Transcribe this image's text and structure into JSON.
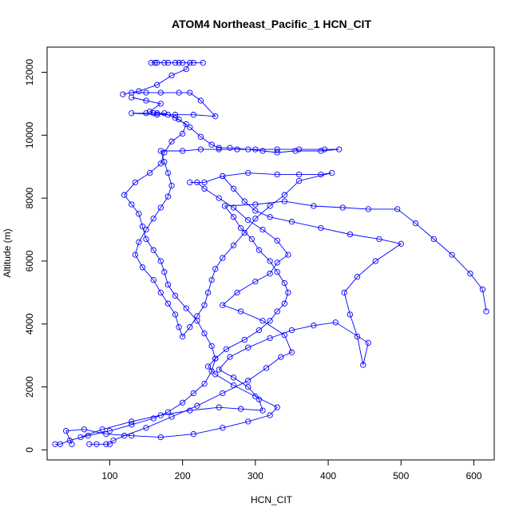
{
  "chart_data": {
    "type": "line",
    "title": "ATOM4 Northeast_Pacific_1 HCN_CIT",
    "xlabel": "HCN_CIT",
    "ylabel": "Altitude (m)",
    "xlim": [
      14,
      628
    ],
    "ylim": [
      -320,
      12800
    ],
    "xticks": [
      100,
      200,
      300,
      400,
      500,
      600
    ],
    "yticks": [
      0,
      2000,
      4000,
      6000,
      8000,
      10000,
      12000
    ],
    "grid": false,
    "series_color": "#0000ff",
    "series": [
      {
        "values": [
          [
            72,
            180
          ],
          [
            82,
            180
          ],
          [
            95,
            180
          ],
          [
            100,
            180
          ],
          [
            105,
            300
          ],
          [
            120,
            450
          ],
          [
            150,
            700
          ],
          [
            185,
            1050
          ],
          [
            220,
            1400
          ],
          [
            255,
            1800
          ],
          [
            290,
            2200
          ],
          [
            315,
            2600
          ],
          [
            335,
            2950
          ],
          [
            350,
            3100
          ],
          [
            340,
            3650
          ],
          [
            310,
            4100
          ],
          [
            280,
            4400
          ],
          [
            255,
            4600
          ],
          [
            275,
            5000
          ],
          [
            300,
            5350
          ],
          [
            320,
            5600
          ],
          [
            330,
            5950
          ],
          [
            345,
            6200
          ],
          [
            330,
            6650
          ],
          [
            310,
            7000
          ],
          [
            290,
            7300
          ],
          [
            270,
            7700
          ],
          [
            250,
            8000
          ],
          [
            230,
            8300
          ],
          [
            220,
            8500
          ],
          [
            210,
            8500
          ],
          [
            230,
            8500
          ],
          [
            255,
            8700
          ],
          [
            290,
            8800
          ],
          [
            330,
            8750
          ],
          [
            360,
            8750
          ],
          [
            390,
            8750
          ],
          [
            405,
            8800
          ],
          [
            360,
            8550
          ],
          [
            340,
            8100
          ],
          [
            320,
            7750
          ],
          [
            300,
            7350
          ],
          [
            285,
            6900
          ],
          [
            270,
            6500
          ],
          [
            255,
            6100
          ],
          [
            245,
            5750
          ],
          [
            240,
            5400
          ],
          [
            235,
            5000
          ],
          [
            230,
            4600
          ],
          [
            220,
            4250
          ],
          [
            210,
            3900
          ],
          [
            200,
            3600
          ],
          [
            195,
            3900
          ],
          [
            190,
            4300
          ],
          [
            180,
            4650
          ],
          [
            170,
            5000
          ],
          [
            160,
            5400
          ],
          [
            145,
            5800
          ],
          [
            135,
            6200
          ],
          [
            140,
            6600
          ],
          [
            150,
            7000
          ],
          [
            160,
            7350
          ],
          [
            170,
            7700
          ],
          [
            180,
            8050
          ],
          [
            185,
            8400
          ],
          [
            180,
            8800
          ],
          [
            175,
            9150
          ],
          [
            170,
            9500
          ],
          [
            200,
            9500
          ],
          [
            225,
            9550
          ],
          [
            250,
            9550
          ],
          [
            275,
            9550
          ],
          [
            300,
            9550
          ],
          [
            330,
            9550
          ],
          [
            360,
            9550
          ],
          [
            395,
            9550
          ],
          [
            415,
            9550
          ],
          [
            390,
            9500
          ],
          [
            355,
            9500
          ],
          [
            330,
            9450
          ],
          [
            310,
            9500
          ],
          [
            290,
            9550
          ],
          [
            265,
            9600
          ],
          [
            250,
            9600
          ],
          [
            240,
            9700
          ],
          [
            225,
            9950
          ],
          [
            210,
            10250
          ],
          [
            195,
            10500
          ],
          [
            180,
            10650
          ],
          [
            165,
            10700
          ],
          [
            150,
            10700
          ],
          [
            130,
            10700
          ],
          [
            165,
            10650
          ],
          [
            190,
            10650
          ],
          [
            215,
            10650
          ],
          [
            245,
            10600
          ],
          [
            225,
            11100
          ],
          [
            210,
            11350
          ],
          [
            195,
            11350
          ],
          [
            170,
            11350
          ],
          [
            150,
            11350
          ],
          [
            130,
            11350
          ],
          [
            118,
            11300
          ],
          [
            140,
            11400
          ],
          [
            165,
            11600
          ],
          [
            185,
            11900
          ],
          [
            205,
            12100
          ],
          [
            210,
            12300
          ],
          [
            200,
            12300
          ],
          [
            190,
            12300
          ],
          [
            175,
            12300
          ],
          [
            162,
            12300
          ],
          [
            157,
            12300
          ],
          [
            165,
            12300
          ],
          [
            180,
            12300
          ],
          [
            195,
            12300
          ],
          [
            215,
            12300
          ],
          [
            228,
            12300
          ]
        ]
      },
      {
        "values": [
          [
            25,
            180
          ],
          [
            32,
            180
          ],
          [
            45,
            300
          ],
          [
            70,
            450
          ],
          [
            100,
            600
          ],
          [
            130,
            800
          ],
          [
            160,
            1000
          ],
          [
            180,
            1200
          ],
          [
            200,
            1500
          ],
          [
            215,
            1800
          ],
          [
            230,
            2100
          ],
          [
            240,
            2500
          ],
          [
            245,
            2900
          ],
          [
            240,
            3300
          ],
          [
            230,
            3700
          ],
          [
            220,
            4100
          ],
          [
            205,
            4500
          ],
          [
            190,
            4900
          ],
          [
            180,
            5250
          ],
          [
            175,
            5650
          ],
          [
            170,
            6000
          ],
          [
            160,
            6350
          ],
          [
            150,
            6700
          ],
          [
            145,
            7100
          ],
          [
            140,
            7500
          ],
          [
            130,
            7800
          ],
          [
            120,
            8100
          ],
          [
            135,
            8500
          ],
          [
            155,
            8800
          ],
          [
            170,
            9100
          ],
          [
            175,
            9450
          ],
          [
            185,
            9800
          ],
          [
            200,
            10050
          ],
          [
            205,
            10350
          ],
          [
            190,
            10550
          ],
          [
            175,
            10700
          ],
          [
            160,
            10700
          ],
          [
            155,
            10750
          ],
          [
            170,
            11000
          ],
          [
            150,
            11100
          ],
          [
            130,
            11200
          ]
        ]
      },
      {
        "values": [
          [
            48,
            180
          ],
          [
            40,
            600
          ],
          [
            65,
            650
          ],
          [
            95,
            500
          ],
          [
            130,
            450
          ],
          [
            170,
            400
          ],
          [
            215,
            500
          ],
          [
            255,
            700
          ],
          [
            290,
            900
          ],
          [
            320,
            1100
          ],
          [
            330,
            1350
          ],
          [
            300,
            1700
          ],
          [
            270,
            2050
          ],
          [
            245,
            2400
          ],
          [
            235,
            2650
          ],
          [
            245,
            2900
          ],
          [
            260,
            3200
          ],
          [
            285,
            3500
          ],
          [
            305,
            3800
          ],
          [
            320,
            4100
          ],
          [
            330,
            4400
          ],
          [
            340,
            4650
          ],
          [
            345,
            5000
          ],
          [
            340,
            5300
          ],
          [
            330,
            5650
          ],
          [
            320,
            6000
          ],
          [
            305,
            6350
          ],
          [
            295,
            6700
          ],
          [
            280,
            7050
          ],
          [
            270,
            7400
          ],
          [
            258,
            7750
          ],
          [
            300,
            7800
          ],
          [
            340,
            7900
          ],
          [
            380,
            7750
          ],
          [
            420,
            7700
          ],
          [
            455,
            7650
          ],
          [
            495,
            7650
          ],
          [
            520,
            7200
          ],
          [
            545,
            6700
          ],
          [
            570,
            6200
          ],
          [
            595,
            5600
          ],
          [
            612,
            5100
          ],
          [
            617,
            4400
          ]
        ]
      },
      {
        "values": [
          [
            60,
            400
          ],
          [
            90,
            650
          ],
          [
            130,
            900
          ],
          [
            170,
            1100
          ],
          [
            210,
            1250
          ],
          [
            250,
            1350
          ],
          [
            280,
            1300
          ],
          [
            310,
            1250
          ],
          [
            305,
            1600
          ],
          [
            290,
            2000
          ],
          [
            270,
            2300
          ],
          [
            250,
            2550
          ],
          [
            265,
            2950
          ],
          [
            290,
            3250
          ],
          [
            320,
            3550
          ],
          [
            350,
            3800
          ],
          [
            380,
            3950
          ],
          [
            410,
            4050
          ],
          [
            455,
            3400
          ],
          [
            448,
            2700
          ],
          [
            440,
            3600
          ],
          [
            430,
            4300
          ],
          [
            422,
            5000
          ],
          [
            440,
            5500
          ],
          [
            465,
            6000
          ],
          [
            500,
            6550
          ],
          [
            470,
            6700
          ],
          [
            430,
            6850
          ],
          [
            390,
            7050
          ],
          [
            350,
            7250
          ],
          [
            320,
            7400
          ],
          [
            300,
            7600
          ],
          [
            285,
            7900
          ],
          [
            270,
            8300
          ],
          [
            255,
            8700
          ]
        ]
      }
    ]
  }
}
